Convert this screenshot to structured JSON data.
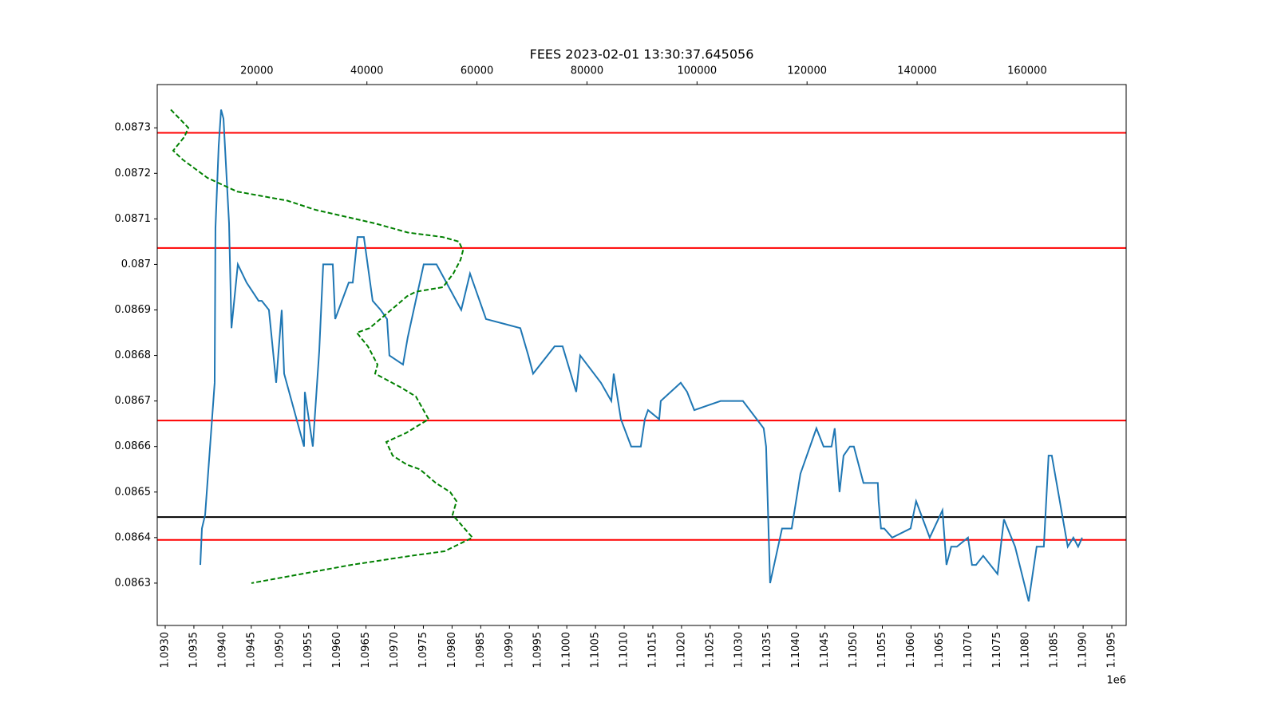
{
  "chart_data": {
    "type": "line",
    "title": "FEES 2023-02-01 13:30:37.645056",
    "x_offset_label": "1e6",
    "xlim": [
      1092861,
      1109750
    ],
    "xticks": [
      {
        "value": 1093000,
        "label": "1.0930"
      },
      {
        "value": 1093500,
        "label": "1.0935"
      },
      {
        "value": 1094000,
        "label": "1.0940"
      },
      {
        "value": 1094500,
        "label": "1.0945"
      },
      {
        "value": 1095000,
        "label": "1.0950"
      },
      {
        "value": 1095500,
        "label": "1.0955"
      },
      {
        "value": 1096000,
        "label": "1.0960"
      },
      {
        "value": 1096500,
        "label": "1.0965"
      },
      {
        "value": 1097000,
        "label": "1.0970"
      },
      {
        "value": 1097500,
        "label": "1.0975"
      },
      {
        "value": 1098000,
        "label": "1.0980"
      },
      {
        "value": 1098500,
        "label": "1.0985"
      },
      {
        "value": 1099000,
        "label": "1.0990"
      },
      {
        "value": 1099500,
        "label": "1.0995"
      },
      {
        "value": 1100000,
        "label": "1.1000"
      },
      {
        "value": 1100500,
        "label": "1.1005"
      },
      {
        "value": 1101000,
        "label": "1.1010"
      },
      {
        "value": 1101500,
        "label": "1.1015"
      },
      {
        "value": 1102000,
        "label": "1.1020"
      },
      {
        "value": 1102500,
        "label": "1.1025"
      },
      {
        "value": 1103000,
        "label": "1.1030"
      },
      {
        "value": 1103500,
        "label": "1.1035"
      },
      {
        "value": 1104000,
        "label": "1.1040"
      },
      {
        "value": 1104500,
        "label": "1.1045"
      },
      {
        "value": 1105000,
        "label": "1.1050"
      },
      {
        "value": 1105500,
        "label": "1.1055"
      },
      {
        "value": 1106000,
        "label": "1.1060"
      },
      {
        "value": 1106500,
        "label": "1.1065"
      },
      {
        "value": 1107000,
        "label": "1.1070"
      },
      {
        "value": 1107500,
        "label": "1.1075"
      },
      {
        "value": 1108000,
        "label": "1.1080"
      },
      {
        "value": 1108500,
        "label": "1.1085"
      },
      {
        "value": 1109000,
        "label": "1.1090"
      },
      {
        "value": 1109500,
        "label": "1.1095"
      }
    ],
    "x2lim": [
      1886,
      178000
    ],
    "x2ticks": [
      20000,
      40000,
      60000,
      80000,
      100000,
      120000,
      140000,
      160000
    ],
    "ylim": [
      0.086207,
      0.087395
    ],
    "yticks": [
      0.0863,
      0.0864,
      0.0865,
      0.0866,
      0.0867,
      0.0868,
      0.0869,
      0.087,
      0.0871,
      0.0872,
      0.0873
    ],
    "hlines": [
      {
        "value": 0.087289,
        "color": "#ff0000"
      },
      {
        "value": 0.087036,
        "color": "#ff0000"
      },
      {
        "value": 0.086657,
        "color": "#ff0000"
      },
      {
        "value": 0.086445,
        "color": "#000000"
      },
      {
        "value": 0.086395,
        "color": "#ff0000"
      }
    ],
    "series": [
      {
        "color": "#1f77b4",
        "style": "solid",
        "x": [
          1093612,
          1093640,
          1093696,
          1093862,
          1093876,
          1093932,
          1093974,
          1094016,
          1094113,
          1094155,
          1094266,
          1094419,
          1094628,
          1094683,
          1094808,
          1094934,
          1095031,
          1095073,
          1095420,
          1095434,
          1095573,
          1095685,
          1095754,
          1095921,
          1095963,
          1096199,
          1096269,
          1096352,
          1096463,
          1096616,
          1096755,
          1096867,
          1096908,
          1097145,
          1097228,
          1097506,
          1097729,
          1098160,
          1098313,
          1098592,
          1099190,
          1099329,
          1099413,
          1099788,
          1099927,
          1100164,
          1100233,
          1100595,
          1100776,
          1100818,
          1100943,
          1101123,
          1101290,
          1101360,
          1101416,
          1101611,
          1101638,
          1101986,
          1102097,
          1102222,
          1102681,
          1103070,
          1103432,
          1103474,
          1103544,
          1103752,
          1103920,
          1104072,
          1104351,
          1104476,
          1104615,
          1104670,
          1104754,
          1104824,
          1104935,
          1105004,
          1105171,
          1105421,
          1105435,
          1105477,
          1105533,
          1105672,
          1105992,
          1106089,
          1106326,
          1106548,
          1106618,
          1106701,
          1106799,
          1106993,
          1107063,
          1107133,
          1107258,
          1107508,
          1107620,
          1107814,
          1108051,
          1108190,
          1108315,
          1108398,
          1108454,
          1108732,
          1108830,
          1108913,
          1108983
        ],
        "values": [
          0.08634,
          0.08642,
          0.08645,
          0.08674,
          0.08708,
          0.08726,
          0.08734,
          0.08732,
          0.08709,
          0.08686,
          0.087,
          0.08696,
          0.08692,
          0.08692,
          0.0869,
          0.08674,
          0.0869,
          0.08676,
          0.0866,
          0.08672,
          0.0866,
          0.08681,
          0.087,
          0.087,
          0.08688,
          0.08696,
          0.08696,
          0.08706,
          0.08706,
          0.08692,
          0.0869,
          0.08688,
          0.0868,
          0.08678,
          0.08684,
          0.087,
          0.087,
          0.0869,
          0.08698,
          0.08688,
          0.08686,
          0.0868,
          0.08676,
          0.08682,
          0.08682,
          0.08672,
          0.0868,
          0.08674,
          0.0867,
          0.08676,
          0.08666,
          0.0866,
          0.0866,
          0.08666,
          0.08668,
          0.08666,
          0.0867,
          0.08674,
          0.08672,
          0.08668,
          0.0867,
          0.0867,
          0.08664,
          0.0866,
          0.0863,
          0.08642,
          0.08642,
          0.08654,
          0.08664,
          0.0866,
          0.0866,
          0.08664,
          0.0865,
          0.08658,
          0.0866,
          0.0866,
          0.08652,
          0.08652,
          0.08648,
          0.08642,
          0.08642,
          0.0864,
          0.08642,
          0.08648,
          0.0864,
          0.08646,
          0.08634,
          0.08638,
          0.08638,
          0.0864,
          0.08634,
          0.08634,
          0.08636,
          0.08632,
          0.08644,
          0.08638,
          0.08626,
          0.08638,
          0.08638,
          0.08658,
          0.08658,
          0.08638,
          0.0864,
          0.08638,
          0.0864
        ]
      },
      {
        "color": "#008000",
        "style": "dashed",
        "axis": "x2",
        "x": [
          4352,
          7544,
          6818,
          4787,
          6528,
          11025,
          16393,
          25532,
          30610,
          41490,
          47438,
          53821,
          56722,
          57448,
          57013,
          55707,
          53821,
          48889,
          47293,
          44392,
          40475,
          38154,
          40185,
          41926,
          41490,
          46133,
          48889,
          51210,
          47148,
          43522,
          44682,
          47293,
          49614,
          52515,
          55126,
          56287,
          55562,
          57738,
          59189,
          54111,
          48018,
          37138,
          19004
        ],
        "values": [
          0.08734,
          0.0873,
          0.08728,
          0.08725,
          0.08723,
          0.08719,
          0.08716,
          0.08714,
          0.08712,
          0.08709,
          0.08707,
          0.08706,
          0.08705,
          0.08703,
          0.08701,
          0.08698,
          0.08695,
          0.08694,
          0.08693,
          0.0869,
          0.08686,
          0.08685,
          0.08682,
          0.08678,
          0.08676,
          0.08673,
          0.08671,
          0.08666,
          0.08663,
          0.08661,
          0.08658,
          0.08656,
          0.08655,
          0.08652,
          0.0865,
          0.08648,
          0.08645,
          0.08642,
          0.0864,
          0.08637,
          0.08636,
          0.08634,
          0.0863
        ]
      }
    ]
  }
}
